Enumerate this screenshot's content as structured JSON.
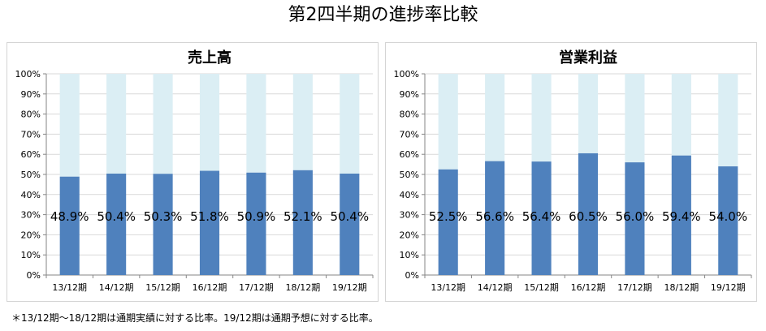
{
  "title": "第2四半期の進捗率比較",
  "footnote": "＊13/12期〜18/12期は通期実績に対する比率。19/12期は通期予想に対する比率。",
  "colors": {
    "progress": "#4f81bd",
    "remainder": "#dbeef4",
    "grid": "#d9d9d9",
    "axis": "#868686"
  },
  "chart_data": [
    {
      "type": "bar",
      "stacked": true,
      "title": "売上高",
      "categories": [
        "13/12期",
        "14/12期",
        "15/12期",
        "16/12期",
        "17/12期",
        "18/12期",
        "19/12期"
      ],
      "values": [
        48.9,
        50.4,
        50.3,
        51.8,
        50.9,
        52.1,
        50.4
      ],
      "data_labels": [
        "48.9%",
        "50.4%",
        "50.3%",
        "51.8%",
        "50.9%",
        "52.1%",
        "50.4%"
      ],
      "remainder_to": 100,
      "ylim": [
        0,
        100
      ],
      "yticks": [
        "0%",
        "10%",
        "20%",
        "30%",
        "40%",
        "50%",
        "60%",
        "70%",
        "80%",
        "90%",
        "100%"
      ],
      "grid": true
    },
    {
      "type": "bar",
      "stacked": true,
      "title": "営業利益",
      "categories": [
        "13/12期",
        "14/12期",
        "15/12期",
        "16/12期",
        "17/12期",
        "18/12期",
        "19/12期"
      ],
      "values": [
        52.5,
        56.6,
        56.4,
        60.5,
        56.0,
        59.4,
        54.0
      ],
      "data_labels": [
        "52.5%",
        "56.6%",
        "56.4%",
        "60.5%",
        "56.0%",
        "59.4%",
        "54.0%"
      ],
      "remainder_to": 100,
      "ylim": [
        0,
        100
      ],
      "yticks": [
        "0%",
        "10%",
        "20%",
        "30%",
        "40%",
        "50%",
        "60%",
        "70%",
        "80%",
        "90%",
        "100%"
      ],
      "grid": true
    }
  ]
}
